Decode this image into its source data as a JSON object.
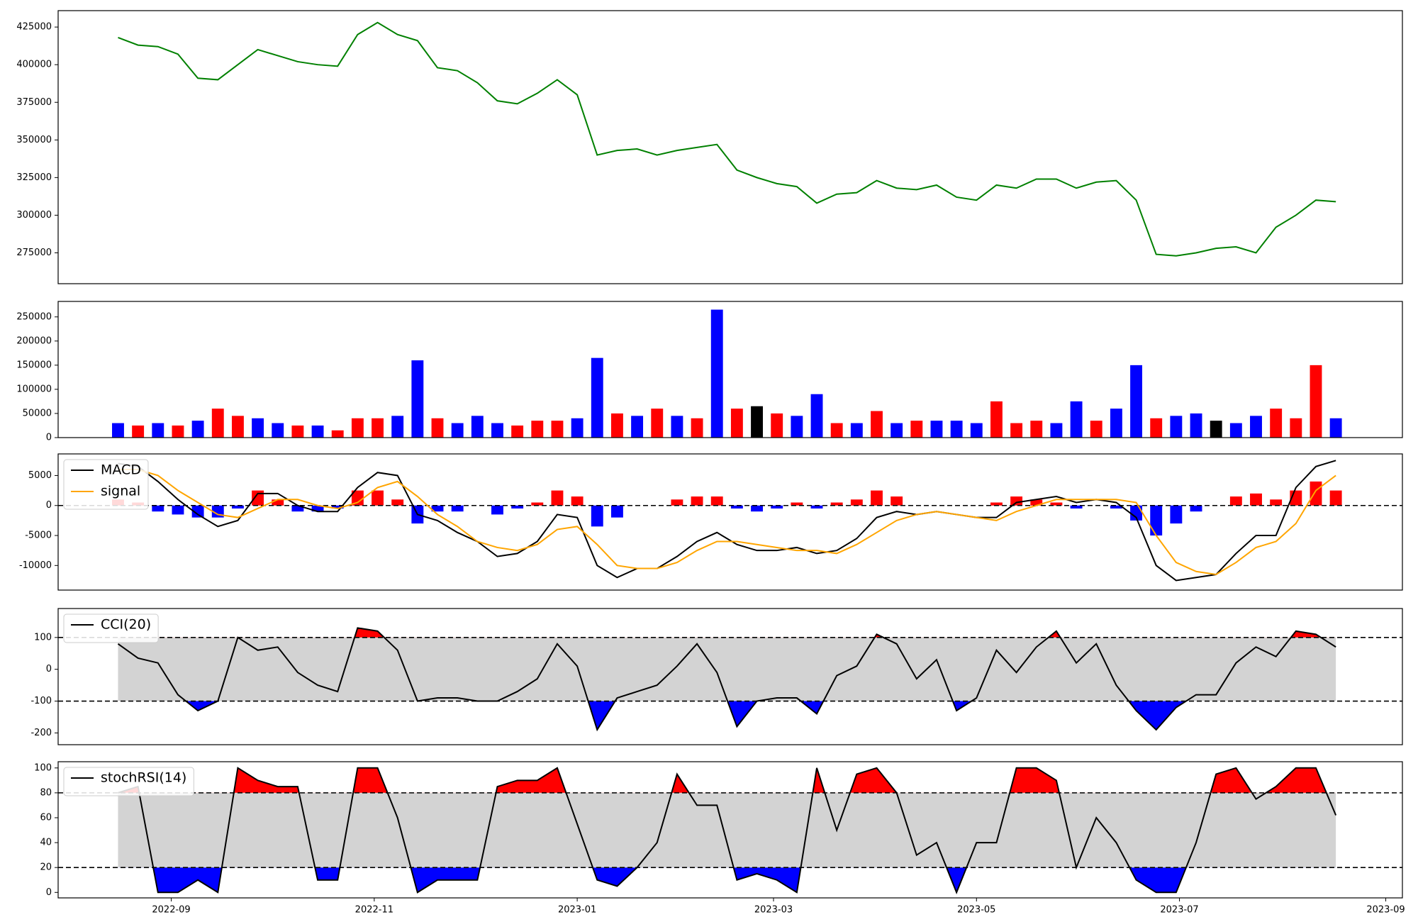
{
  "chart_data": [
    {
      "type": "line",
      "x": [
        19220,
        19226,
        19232,
        19238,
        19244,
        19250,
        19256,
        19262,
        19268,
        19274,
        19280,
        19286,
        19292,
        19298,
        19304,
        19310,
        19316,
        19322,
        19328,
        19334,
        19340,
        19346,
        19352,
        19358,
        19364,
        19370,
        19376,
        19382,
        19388,
        19394,
        19400,
        19406,
        19412,
        19418,
        19424,
        19430,
        19436,
        19442,
        19448,
        19454,
        19460,
        19466,
        19472,
        19478,
        19484,
        19490,
        19496,
        19502,
        19508,
        19514,
        19520,
        19526,
        19532,
        19538,
        19544,
        19550,
        19556,
        19562,
        19568,
        19574,
        19580,
        19586
      ],
      "values": [
        418000,
        413000,
        412000,
        407000,
        391000,
        390000,
        400000,
        410000,
        406000,
        402000,
        400000,
        399000,
        420000,
        428000,
        420000,
        416000,
        398000,
        396000,
        388000,
        376000,
        374000,
        381000,
        390000,
        380000,
        340000,
        343000,
        344000,
        340000,
        343000,
        345000,
        347000,
        330000,
        325000,
        321000,
        319000,
        308000,
        314000,
        315000,
        323000,
        318000,
        317000,
        320000,
        312000,
        310000,
        320000,
        318000,
        324000,
        324000,
        318000,
        322000,
        323000,
        310000,
        274000,
        273000,
        275000,
        278000,
        279000,
        275000,
        292000,
        300000,
        310000,
        309000
      ],
      "color": "green",
      "xlim": [
        19202,
        19606
      ],
      "ylim": [
        254500,
        435900
      ],
      "yticks": [
        275000,
        300000,
        325000,
        350000,
        375000,
        400000,
        425000
      ]
    },
    {
      "type": "bar",
      "x": [
        19220,
        19226,
        19232,
        19238,
        19244,
        19250,
        19256,
        19262,
        19268,
        19274,
        19280,
        19286,
        19292,
        19298,
        19304,
        19310,
        19316,
        19322,
        19328,
        19334,
        19340,
        19346,
        19352,
        19358,
        19364,
        19370,
        19376,
        19382,
        19388,
        19394,
        19400,
        19406,
        19412,
        19418,
        19424,
        19430,
        19436,
        19442,
        19448,
        19454,
        19460,
        19466,
        19472,
        19478,
        19484,
        19490,
        19496,
        19502,
        19508,
        19514,
        19520,
        19526,
        19532,
        19538,
        19544,
        19550,
        19556,
        19562,
        19568,
        19574,
        19580,
        19586
      ],
      "values": [
        30000,
        25000,
        30000,
        25000,
        35000,
        60000,
        45000,
        40000,
        30000,
        25000,
        25000,
        15000,
        40000,
        40000,
        45000,
        160000,
        40000,
        30000,
        45000,
        30000,
        25000,
        35000,
        35000,
        40000,
        165000,
        50000,
        45000,
        60000,
        45000,
        40000,
        265000,
        60000,
        65000,
        50000,
        45000,
        90000,
        30000,
        30000,
        55000,
        30000,
        35000,
        35000,
        35000,
        30000,
        75000,
        30000,
        35000,
        30000,
        75000,
        35000,
        60000,
        150000,
        40000,
        45000,
        50000,
        35000,
        30000,
        45000,
        60000,
        40000,
        150000,
        40000
      ],
      "colors": [
        "blue",
        "red",
        "blue",
        "red",
        "blue",
        "red",
        "red",
        "blue",
        "blue",
        "red",
        "blue",
        "red",
        "red",
        "red",
        "blue",
        "blue",
        "red",
        "blue",
        "blue",
        "blue",
        "red",
        "red",
        "red",
        "blue",
        "blue",
        "red",
        "blue",
        "red",
        "blue",
        "red",
        "blue",
        "red",
        "black",
        "red",
        "blue",
        "blue",
        "red",
        "blue",
        "red",
        "blue",
        "red",
        "blue",
        "blue",
        "blue",
        "red",
        "red",
        "red",
        "blue",
        "blue",
        "red",
        "blue",
        "blue",
        "red",
        "blue",
        "blue",
        "black",
        "blue",
        "blue",
        "red",
        "red",
        "red",
        "blue"
      ],
      "xlim": [
        19202,
        19606
      ],
      "ylim": [
        0,
        282000
      ],
      "yticks": [
        0,
        50000,
        100000,
        150000,
        200000,
        250000
      ]
    },
    {
      "type": "macd",
      "x": [
        19220,
        19226,
        19232,
        19238,
        19244,
        19250,
        19256,
        19262,
        19268,
        19274,
        19280,
        19286,
        19292,
        19298,
        19304,
        19310,
        19316,
        19322,
        19328,
        19334,
        19340,
        19346,
        19352,
        19358,
        19364,
        19370,
        19376,
        19382,
        19388,
        19394,
        19400,
        19406,
        19412,
        19418,
        19424,
        19430,
        19436,
        19442,
        19448,
        19454,
        19460,
        19466,
        19472,
        19478,
        19484,
        19490,
        19496,
        19502,
        19508,
        19514,
        19520,
        19526,
        19532,
        19538,
        19544,
        19550,
        19556,
        19562,
        19568,
        19574,
        19580,
        19586
      ],
      "series": [
        {
          "name": "MACD",
          "color": "black",
          "values": [
            7000,
            6500,
            4000,
            1000,
            -1500,
            -3500,
            -2500,
            2000,
            2000,
            0,
            -1000,
            -1000,
            3000,
            5500,
            5000,
            -1500,
            -2500,
            -4500,
            -6000,
            -8500,
            -8000,
            -6000,
            -1500,
            -2000,
            -10000,
            -12000,
            -10500,
            -10500,
            -8500,
            -6000,
            -4500,
            -6500,
            -7500,
            -7500,
            -7000,
            -8000,
            -7500,
            -5500,
            -2000,
            -1000,
            -1500,
            -1000,
            -1500,
            -2000,
            -2000,
            500,
            1000,
            1500,
            500,
            1000,
            500,
            -2000,
            -10000,
            -12500,
            -12000,
            -11500,
            -8000,
            -5000,
            -5000,
            3000,
            6500,
            7500
          ]
        },
        {
          "name": "signal",
          "color": "orange",
          "values": [
            6000,
            6000,
            5000,
            2500,
            500,
            -1500,
            -2000,
            -500,
            1000,
            1000,
            0,
            -500,
            500,
            3000,
            4000,
            1500,
            -1500,
            -3500,
            -6000,
            -7000,
            -7500,
            -6500,
            -4000,
            -3500,
            -6500,
            -10000,
            -10500,
            -10500,
            -9500,
            -7500,
            -6000,
            -6000,
            -6500,
            -7000,
            -7500,
            -7500,
            -8000,
            -6500,
            -4500,
            -2500,
            -1500,
            -1000,
            -1500,
            -2000,
            -2500,
            -1000,
            0,
            1000,
            1000,
            1000,
            1000,
            500,
            -5000,
            -9500,
            -11000,
            -11500,
            -9500,
            -7000,
            -6000,
            -3000,
            2500,
            5000
          ]
        }
      ],
      "histogram": {
        "values": [
          1000,
          500,
          -1000,
          -1500,
          -2000,
          -2000,
          -500,
          2500,
          1000,
          -1000,
          -1000,
          -500,
          2500,
          2500,
          1000,
          -3000,
          -1000,
          -1000,
          0,
          -1500,
          -500,
          500,
          2500,
          1500,
          -3500,
          -2000,
          0,
          0,
          1000,
          1500,
          1500,
          -500,
          -1000,
          -500,
          500,
          -500,
          500,
          1000,
          2500,
          1500,
          0,
          0,
          0,
          0,
          500,
          1500,
          1000,
          500,
          -500,
          0,
          -500,
          -2500,
          -5000,
          -3000,
          -1000,
          0,
          1500,
          2000,
          1000,
          2500,
          4000,
          2500
        ],
        "up_color": "red",
        "down_color": "blue"
      },
      "hline": 0,
      "legend": "upper left",
      "xlim": [
        19202,
        19606
      ],
      "ylim": [
        -14100,
        8600
      ],
      "yticks": [
        -10000,
        -5000,
        0,
        5000
      ]
    },
    {
      "type": "oscillator",
      "x": [
        19220,
        19226,
        19232,
        19238,
        19244,
        19250,
        19256,
        19262,
        19268,
        19274,
        19280,
        19286,
        19292,
        19298,
        19304,
        19310,
        19316,
        19322,
        19328,
        19334,
        19340,
        19346,
        19352,
        19358,
        19364,
        19370,
        19376,
        19382,
        19388,
        19394,
        19400,
        19406,
        19412,
        19418,
        19424,
        19430,
        19436,
        19442,
        19448,
        19454,
        19460,
        19466,
        19472,
        19478,
        19484,
        19490,
        19496,
        19502,
        19508,
        19514,
        19520,
        19526,
        19532,
        19538,
        19544,
        19550,
        19556,
        19562,
        19568,
        19574,
        19580,
        19586
      ],
      "series": [
        {
          "name": "CCI(20)",
          "color": "black",
          "values": [
            80,
            35,
            20,
            -80,
            -130,
            -100,
            100,
            60,
            70,
            -10,
            -50,
            -70,
            130,
            120,
            60,
            -100,
            -90,
            -90,
            -100,
            -100,
            -70,
            -30,
            80,
            10,
            -190,
            -90,
            -70,
            -50,
            10,
            80,
            -10,
            -180,
            -100,
            -90,
            -90,
            -140,
            -20,
            10,
            110,
            80,
            -30,
            30,
            -130,
            -90,
            60,
            -10,
            70,
            120,
            20,
            80,
            -50,
            -130,
            -190,
            -120,
            -80,
            -80,
            20,
            70,
            40,
            120,
            110,
            70
          ]
        }
      ],
      "thresholds": [
        100,
        -100
      ],
      "band_color": "lightgray",
      "above_color": "red",
      "below_color": "blue",
      "legend": "upper left",
      "xlim": [
        19202,
        19606
      ],
      "ylim": [
        -237,
        191
      ],
      "yticks": [
        -200,
        -100,
        0,
        100
      ]
    },
    {
      "type": "oscillator",
      "x": [
        19220,
        19226,
        19232,
        19238,
        19244,
        19250,
        19256,
        19262,
        19268,
        19274,
        19280,
        19286,
        19292,
        19298,
        19304,
        19310,
        19316,
        19322,
        19328,
        19334,
        19340,
        19346,
        19352,
        19358,
        19364,
        19370,
        19376,
        19382,
        19388,
        19394,
        19400,
        19406,
        19412,
        19418,
        19424,
        19430,
        19436,
        19442,
        19448,
        19454,
        19460,
        19466,
        19472,
        19478,
        19484,
        19490,
        19496,
        19502,
        19508,
        19514,
        19520,
        19526,
        19532,
        19538,
        19544,
        19550,
        19556,
        19562,
        19568,
        19574,
        19580,
        19586
      ],
      "series": [
        {
          "name": "stochRSI(14)",
          "color": "black",
          "values": [
            80,
            85,
            0,
            0,
            10,
            0,
            100,
            90,
            85,
            85,
            10,
            10,
            100,
            100,
            60,
            0,
            10,
            10,
            10,
            85,
            90,
            90,
            100,
            55,
            10,
            5,
            20,
            40,
            95,
            70,
            70,
            10,
            15,
            10,
            0,
            100,
            50,
            95,
            100,
            80,
            30,
            40,
            0,
            40,
            40,
            100,
            100,
            90,
            20,
            60,
            40,
            10,
            0,
            0,
            40,
            95,
            100,
            75,
            85,
            100,
            100,
            62
          ]
        }
      ],
      "thresholds": [
        80,
        20
      ],
      "band_color": "lightgray",
      "above_color": "red",
      "below_color": "blue",
      "legend": "upper left",
      "xlim": [
        19202,
        19606
      ],
      "ylim": [
        -4.4,
        105
      ],
      "yticks": [
        0,
        20,
        40,
        60,
        80,
        100
      ],
      "xticks": [
        {
          "value": 19236,
          "label": "2022-09"
        },
        {
          "value": 19297,
          "label": "2022-11"
        },
        {
          "value": 19358,
          "label": "2023-01"
        },
        {
          "value": 19417,
          "label": "2023-03"
        },
        {
          "value": 19478,
          "label": "2023-05"
        },
        {
          "value": 19539,
          "label": "2023-07"
        },
        {
          "value": 19601,
          "label": "2023-09"
        }
      ]
    }
  ]
}
